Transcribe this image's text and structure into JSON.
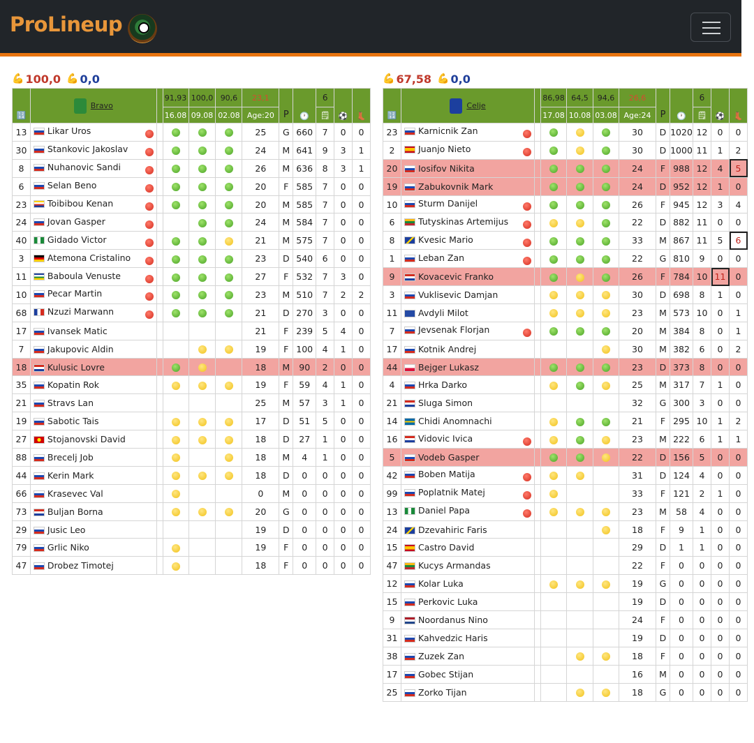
{
  "brand": "ProLineup",
  "colors": {
    "header_green": "#6a9a2c",
    "highlight_row": "#f2a4a0",
    "accent_orange": "#e8740f"
  },
  "icons": {
    "calculator": "calculator-icon",
    "clock": "clock-icon",
    "notes": "notes-icon",
    "ball": "soccer-ball-icon",
    "boot": "boot-icon",
    "strength": "flexed-arm-icon"
  },
  "left": {
    "power_home": "100,0",
    "power_away": "0,0",
    "team": "Bravo",
    "form": [
      {
        "val": "91,93",
        "date": "16.08"
      },
      {
        "val": "100,0",
        "date": "09.08"
      },
      {
        "val": "90,6",
        "date": "02.08"
      }
    ],
    "avg": "23,1",
    "age": "Age:20",
    "games": "6",
    "pos_head": "P",
    "players": [
      {
        "no": "13",
        "flag": "si",
        "name": "Likar Uros",
        "s": "r",
        "m": [
          "g",
          "g",
          "g"
        ],
        "age": "25",
        "pos": "G",
        "min": "660",
        "gp": "7",
        "g": "0",
        "a": "0"
      },
      {
        "no": "30",
        "flag": "si",
        "name": "Stankovic Jakoslav",
        "s": "r",
        "m": [
          "g",
          "g",
          "g"
        ],
        "age": "24",
        "pos": "M",
        "min": "641",
        "gp": "9",
        "g": "3",
        "a": "1"
      },
      {
        "no": "8",
        "flag": "si",
        "name": "Nuhanovic Sandi",
        "s": "r",
        "m": [
          "g",
          "g",
          "g"
        ],
        "age": "26",
        "pos": "M",
        "min": "636",
        "gp": "8",
        "g": "3",
        "a": "1"
      },
      {
        "no": "6",
        "flag": "si",
        "name": "Selan Beno",
        "s": "r",
        "m": [
          "g",
          "g",
          "g"
        ],
        "age": "20",
        "pos": "F",
        "min": "585",
        "gp": "7",
        "g": "0",
        "a": "0"
      },
      {
        "no": "23",
        "flag": "km",
        "name": "Toibibou Kenan",
        "s": "r",
        "m": [
          "g",
          "g",
          "g"
        ],
        "age": "20",
        "pos": "M",
        "min": "585",
        "gp": "7",
        "g": "0",
        "a": "0"
      },
      {
        "no": "24",
        "flag": "si",
        "name": "Jovan Gasper",
        "s": "r",
        "m": [
          "",
          "g",
          "g"
        ],
        "age": "24",
        "pos": "M",
        "min": "584",
        "gp": "7",
        "g": "0",
        "a": "0"
      },
      {
        "no": "40",
        "flag": "ng",
        "name": "Gidado Victor",
        "s": "r",
        "m": [
          "g",
          "g",
          "y"
        ],
        "age": "21",
        "pos": "M",
        "min": "575",
        "gp": "7",
        "g": "0",
        "a": "0"
      },
      {
        "no": "3",
        "flag": "de",
        "name": "Atemona Cristalino",
        "s": "r",
        "m": [
          "g",
          "g",
          "g"
        ],
        "age": "23",
        "pos": "D",
        "min": "540",
        "gp": "6",
        "g": "0",
        "a": "0"
      },
      {
        "no": "11",
        "flag": "cf",
        "name": "Baboula Venuste",
        "s": "r",
        "m": [
          "g",
          "g",
          "g"
        ],
        "age": "27",
        "pos": "F",
        "min": "532",
        "gp": "7",
        "g": "3",
        "a": "0"
      },
      {
        "no": "10",
        "flag": "si",
        "name": "Pecar Martin",
        "s": "r",
        "m": [
          "g",
          "g",
          "g"
        ],
        "age": "23",
        "pos": "M",
        "min": "510",
        "gp": "7",
        "g": "2",
        "a": "2"
      },
      {
        "no": "68",
        "flag": "fr",
        "name": "Nzuzi Marwann",
        "s": "r",
        "m": [
          "g",
          "g",
          "g"
        ],
        "age": "21",
        "pos": "D",
        "min": "270",
        "gp": "3",
        "g": "0",
        "a": "0"
      },
      {
        "no": "17",
        "flag": "si",
        "name": "Ivansek Matic",
        "s": "",
        "m": [
          "",
          "",
          ""
        ],
        "age": "21",
        "pos": "F",
        "min": "239",
        "gp": "5",
        "g": "4",
        "a": "0"
      },
      {
        "no": "7",
        "flag": "si",
        "name": "Jakupovic Aldin",
        "s": "",
        "m": [
          "",
          "y",
          "y"
        ],
        "age": "19",
        "pos": "F",
        "min": "100",
        "gp": "4",
        "g": "1",
        "a": "0"
      },
      {
        "no": "18",
        "flag": "hr",
        "name": "Kulusic Lovre",
        "s": "",
        "hl": true,
        "m": [
          "g",
          "y",
          ""
        ],
        "age": "18",
        "pos": "M",
        "min": "90",
        "gp": "2",
        "g": "0",
        "a": "0"
      },
      {
        "no": "35",
        "flag": "si",
        "name": "Kopatin Rok",
        "s": "",
        "m": [
          "y",
          "y",
          "y"
        ],
        "age": "19",
        "pos": "F",
        "min": "59",
        "gp": "4",
        "g": "1",
        "a": "0"
      },
      {
        "no": "21",
        "flag": "si",
        "name": "Stravs Lan",
        "s": "",
        "m": [
          "",
          "",
          ""
        ],
        "age": "25",
        "pos": "M",
        "min": "57",
        "gp": "3",
        "g": "1",
        "a": "0"
      },
      {
        "no": "19",
        "flag": "si",
        "name": "Sabotic Tais",
        "s": "",
        "m": [
          "y",
          "y",
          "y"
        ],
        "age": "17",
        "pos": "D",
        "min": "51",
        "gp": "5",
        "g": "0",
        "a": "0"
      },
      {
        "no": "27",
        "flag": "mk",
        "name": "Stojanovski David",
        "s": "",
        "m": [
          "y",
          "y",
          "y"
        ],
        "age": "18",
        "pos": "D",
        "min": "27",
        "gp": "1",
        "g": "0",
        "a": "0"
      },
      {
        "no": "88",
        "flag": "si",
        "name": "Brecelj Job",
        "s": "",
        "m": [
          "y",
          "",
          "y"
        ],
        "age": "18",
        "pos": "M",
        "min": "4",
        "gp": "1",
        "g": "0",
        "a": "0"
      },
      {
        "no": "44",
        "flag": "si",
        "name": "Kerin Mark",
        "s": "",
        "m": [
          "y",
          "y",
          "y"
        ],
        "age": "18",
        "pos": "D",
        "min": "0",
        "gp": "0",
        "g": "0",
        "a": "0"
      },
      {
        "no": "66",
        "flag": "si",
        "name": "Krasevec Val",
        "s": "",
        "m": [
          "y",
          "",
          ""
        ],
        "age": "0",
        "pos": "M",
        "min": "0",
        "gp": "0",
        "g": "0",
        "a": "0"
      },
      {
        "no": "73",
        "flag": "hr",
        "name": "Buljan Borna",
        "s": "",
        "m": [
          "y",
          "y",
          "y"
        ],
        "age": "20",
        "pos": "G",
        "min": "0",
        "gp": "0",
        "g": "0",
        "a": "0"
      },
      {
        "no": "29",
        "flag": "si",
        "name": "Jusic Leo",
        "s": "",
        "m": [
          "",
          "",
          ""
        ],
        "age": "19",
        "pos": "D",
        "min": "0",
        "gp": "0",
        "g": "0",
        "a": "0"
      },
      {
        "no": "79",
        "flag": "si",
        "name": "Grlic Niko",
        "s": "",
        "m": [
          "y",
          "",
          ""
        ],
        "age": "19",
        "pos": "F",
        "min": "0",
        "gp": "0",
        "g": "0",
        "a": "0"
      },
      {
        "no": "47",
        "flag": "si",
        "name": "Drobez Timotej",
        "s": "",
        "m": [
          "y",
          "",
          ""
        ],
        "age": "18",
        "pos": "F",
        "min": "0",
        "gp": "0",
        "g": "0",
        "a": "0"
      }
    ]
  },
  "right": {
    "power_home": "67,58",
    "power_away": "0,0",
    "team": "Celje",
    "form": [
      {
        "val": "86,98",
        "date": "17.08"
      },
      {
        "val": "64,5",
        "date": "10.08"
      },
      {
        "val": "94,6",
        "date": "03.08"
      }
    ],
    "avg": "26,6",
    "age": "Age:24",
    "games": "6",
    "pos_head": "P",
    "players": [
      {
        "no": "23",
        "flag": "si",
        "name": "Karnicnik Zan",
        "s": "r",
        "m": [
          "g",
          "y",
          "g"
        ],
        "age": "30",
        "pos": "D",
        "min": "1020",
        "gp": "12",
        "g": "0",
        "a": "0"
      },
      {
        "no": "2",
        "flag": "es",
        "name": "Juanjo Nieto",
        "s": "r",
        "m": [
          "g",
          "y",
          "g"
        ],
        "age": "30",
        "pos": "D",
        "min": "1000",
        "gp": "11",
        "g": "1",
        "a": "2"
      },
      {
        "no": "20",
        "flag": "ru",
        "name": "Iosifov Nikita",
        "s": "",
        "hl": true,
        "m": [
          "g",
          "g",
          "g"
        ],
        "age": "24",
        "pos": "F",
        "min": "988",
        "gp": "12",
        "g": "4",
        "a": "5",
        "boxA": true
      },
      {
        "no": "19",
        "flag": "si",
        "name": "Zabukovnik Mark",
        "s": "",
        "hl": true,
        "m": [
          "g",
          "g",
          "g"
        ],
        "age": "24",
        "pos": "D",
        "min": "952",
        "gp": "12",
        "g": "1",
        "a": "0"
      },
      {
        "no": "10",
        "flag": "si",
        "name": "Sturm Danijel",
        "s": "r",
        "m": [
          "g",
          "g",
          "g"
        ],
        "age": "26",
        "pos": "F",
        "min": "945",
        "gp": "12",
        "g": "3",
        "a": "4"
      },
      {
        "no": "6",
        "flag": "lt",
        "name": "Tutyskinas Artemijus",
        "s": "r",
        "m": [
          "y",
          "y",
          "g"
        ],
        "age": "22",
        "pos": "D",
        "min": "882",
        "gp": "11",
        "g": "0",
        "a": "0"
      },
      {
        "no": "8",
        "flag": "ba",
        "name": "Kvesic Mario",
        "s": "r",
        "m": [
          "g",
          "g",
          "g"
        ],
        "age": "33",
        "pos": "M",
        "min": "867",
        "gp": "11",
        "g": "5",
        "a": "6",
        "boxA": true
      },
      {
        "no": "1",
        "flag": "si",
        "name": "Leban Zan",
        "s": "r",
        "m": [
          "g",
          "g",
          "g"
        ],
        "age": "22",
        "pos": "G",
        "min": "810",
        "gp": "9",
        "g": "0",
        "a": "0"
      },
      {
        "no": "9",
        "flag": "hr",
        "name": "Kovacevic Franko",
        "s": "",
        "hl": true,
        "m": [
          "g",
          "y",
          "g"
        ],
        "age": "26",
        "pos": "F",
        "min": "784",
        "gp": "10",
        "g": "11",
        "a": "0",
        "boxG": true
      },
      {
        "no": "3",
        "flag": "si",
        "name": "Vuklisevic Damjan",
        "s": "",
        "m": [
          "y",
          "y",
          "y"
        ],
        "age": "30",
        "pos": "D",
        "min": "698",
        "gp": "8",
        "g": "1",
        "a": "0"
      },
      {
        "no": "11",
        "flag": "xk",
        "name": "Avdyli Milot",
        "s": "",
        "m": [
          "y",
          "y",
          "y"
        ],
        "age": "23",
        "pos": "M",
        "min": "573",
        "gp": "10",
        "g": "0",
        "a": "1"
      },
      {
        "no": "7",
        "flag": "si",
        "name": "Jevsenak Florjan",
        "s": "r",
        "m": [
          "g",
          "g",
          "g"
        ],
        "age": "20",
        "pos": "M",
        "min": "384",
        "gp": "8",
        "g": "0",
        "a": "1"
      },
      {
        "no": "17",
        "flag": "si",
        "name": "Kotnik Andrej",
        "s": "",
        "m": [
          "",
          "",
          "y"
        ],
        "age": "30",
        "pos": "M",
        "min": "382",
        "gp": "6",
        "g": "0",
        "a": "2"
      },
      {
        "no": "44",
        "flag": "pl",
        "name": "Bejger Lukasz",
        "s": "",
        "hl": true,
        "m": [
          "g",
          "g",
          "g"
        ],
        "age": "23",
        "pos": "D",
        "min": "373",
        "gp": "8",
        "g": "0",
        "a": "0"
      },
      {
        "no": "4",
        "flag": "si",
        "name": "Hrka Darko",
        "s": "",
        "m": [
          "y",
          "g",
          "y"
        ],
        "age": "25",
        "pos": "M",
        "min": "317",
        "gp": "7",
        "g": "1",
        "a": "0"
      },
      {
        "no": "21",
        "flag": "hr",
        "name": "Sluga Simon",
        "s": "",
        "m": [
          "",
          "",
          ""
        ],
        "age": "32",
        "pos": "G",
        "min": "300",
        "gp": "3",
        "g": "0",
        "a": "0"
      },
      {
        "no": "14",
        "flag": "se",
        "name": "Chidi Anomnachi",
        "s": "",
        "m": [
          "y",
          "g",
          "g"
        ],
        "age": "21",
        "pos": "F",
        "min": "295",
        "gp": "10",
        "g": "1",
        "a": "2"
      },
      {
        "no": "16",
        "flag": "hr",
        "name": "Vidovic Ivica",
        "s": "r",
        "m": [
          "y",
          "g",
          "y"
        ],
        "age": "23",
        "pos": "M",
        "min": "222",
        "gp": "6",
        "g": "1",
        "a": "1"
      },
      {
        "no": "5",
        "flag": "si",
        "name": "Vodeb Gasper",
        "s": "",
        "hl": true,
        "m": [
          "g",
          "g",
          "y"
        ],
        "age": "22",
        "pos": "D",
        "min": "156",
        "gp": "5",
        "g": "0",
        "a": "0"
      },
      {
        "no": "42",
        "flag": "si",
        "name": "Boben Matija",
        "s": "r",
        "m": [
          "y",
          "y",
          ""
        ],
        "age": "31",
        "pos": "D",
        "min": "124",
        "gp": "4",
        "g": "0",
        "a": "0"
      },
      {
        "no": "99",
        "flag": "si",
        "name": "Poplatnik Matej",
        "s": "r",
        "m": [
          "y",
          "",
          ""
        ],
        "age": "33",
        "pos": "F",
        "min": "121",
        "gp": "2",
        "g": "1",
        "a": "0"
      },
      {
        "no": "13",
        "flag": "ng",
        "name": "Daniel Papa",
        "s": "r",
        "m": [
          "y",
          "y",
          "y"
        ],
        "age": "23",
        "pos": "M",
        "min": "58",
        "gp": "4",
        "g": "0",
        "a": "0"
      },
      {
        "no": "24",
        "flag": "ba",
        "name": "Dzevahiric Faris",
        "s": "",
        "m": [
          "",
          "",
          "y"
        ],
        "age": "18",
        "pos": "F",
        "min": "9",
        "gp": "1",
        "g": "0",
        "a": "0"
      },
      {
        "no": "15",
        "flag": "es",
        "name": "Castro David",
        "s": "",
        "m": [
          "",
          "",
          ""
        ],
        "age": "29",
        "pos": "D",
        "min": "1",
        "gp": "1",
        "g": "0",
        "a": "0"
      },
      {
        "no": "47",
        "flag": "lt",
        "name": "Kucys Armandas",
        "s": "",
        "m": [
          "",
          "",
          ""
        ],
        "age": "22",
        "pos": "F",
        "min": "0",
        "gp": "0",
        "g": "0",
        "a": "0"
      },
      {
        "no": "12",
        "flag": "si",
        "name": "Kolar Luka",
        "s": "",
        "m": [
          "y",
          "y",
          "y"
        ],
        "age": "19",
        "pos": "G",
        "min": "0",
        "gp": "0",
        "g": "0",
        "a": "0"
      },
      {
        "no": "15",
        "flag": "si",
        "name": "Perkovic Luka",
        "s": "",
        "m": [
          "",
          "",
          ""
        ],
        "age": "19",
        "pos": "D",
        "min": "0",
        "gp": "0",
        "g": "0",
        "a": "0"
      },
      {
        "no": "9",
        "flag": "nl",
        "name": "Noordanus Nino",
        "s": "",
        "m": [
          "",
          "",
          ""
        ],
        "age": "24",
        "pos": "F",
        "min": "0",
        "gp": "0",
        "g": "0",
        "a": "0"
      },
      {
        "no": "31",
        "flag": "si",
        "name": "Kahvedzic Haris",
        "s": "",
        "m": [
          "",
          "",
          ""
        ],
        "age": "19",
        "pos": "D",
        "min": "0",
        "gp": "0",
        "g": "0",
        "a": "0"
      },
      {
        "no": "38",
        "flag": "si",
        "name": "Zuzek Zan",
        "s": "",
        "m": [
          "",
          "y",
          "y"
        ],
        "age": "18",
        "pos": "F",
        "min": "0",
        "gp": "0",
        "g": "0",
        "a": "0"
      },
      {
        "no": "17",
        "flag": "si",
        "name": "Gobec Stijan",
        "s": "",
        "m": [
          "",
          "",
          ""
        ],
        "age": "16",
        "pos": "M",
        "min": "0",
        "gp": "0",
        "g": "0",
        "a": "0"
      },
      {
        "no": "25",
        "flag": "si",
        "name": "Zorko Tijan",
        "s": "",
        "m": [
          "",
          "y",
          "y"
        ],
        "age": "18",
        "pos": "G",
        "min": "0",
        "gp": "0",
        "g": "0",
        "a": "0"
      }
    ]
  }
}
